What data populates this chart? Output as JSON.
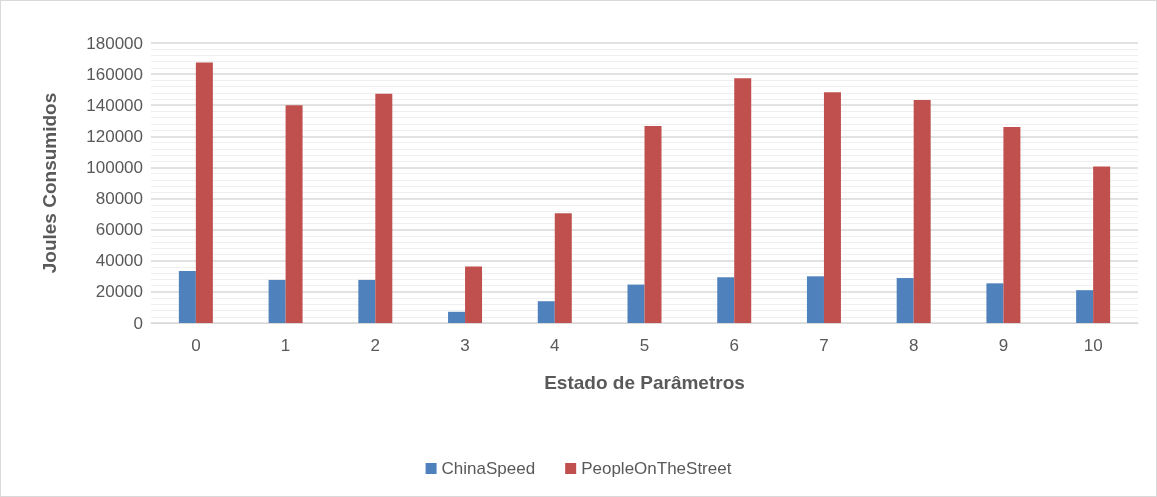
{
  "chart_data": {
    "type": "bar",
    "xlabel": "Estado de Parâmetros",
    "ylabel": "Joules Consumidos",
    "categories": [
      "0",
      "1",
      "2",
      "3",
      "4",
      "5",
      "6",
      "7",
      "8",
      "9",
      "10"
    ],
    "series": [
      {
        "name": "ChinaSpeed",
        "color": "#4f81bd",
        "values": [
          33400,
          27700,
          27700,
          7200,
          14000,
          24700,
          29400,
          30000,
          28900,
          25500,
          21100
        ]
      },
      {
        "name": "PeopleOnTheStreet",
        "color": "#c0504d",
        "values": [
          167500,
          140000,
          147400,
          36400,
          70600,
          126600,
          157400,
          148300,
          143400,
          126000,
          100600
        ]
      }
    ],
    "ylim": [
      0,
      180000
    ],
    "yticks": [
      0,
      20000,
      40000,
      60000,
      80000,
      100000,
      120000,
      140000,
      160000,
      180000
    ],
    "grid": true,
    "legend": "bottom"
  }
}
